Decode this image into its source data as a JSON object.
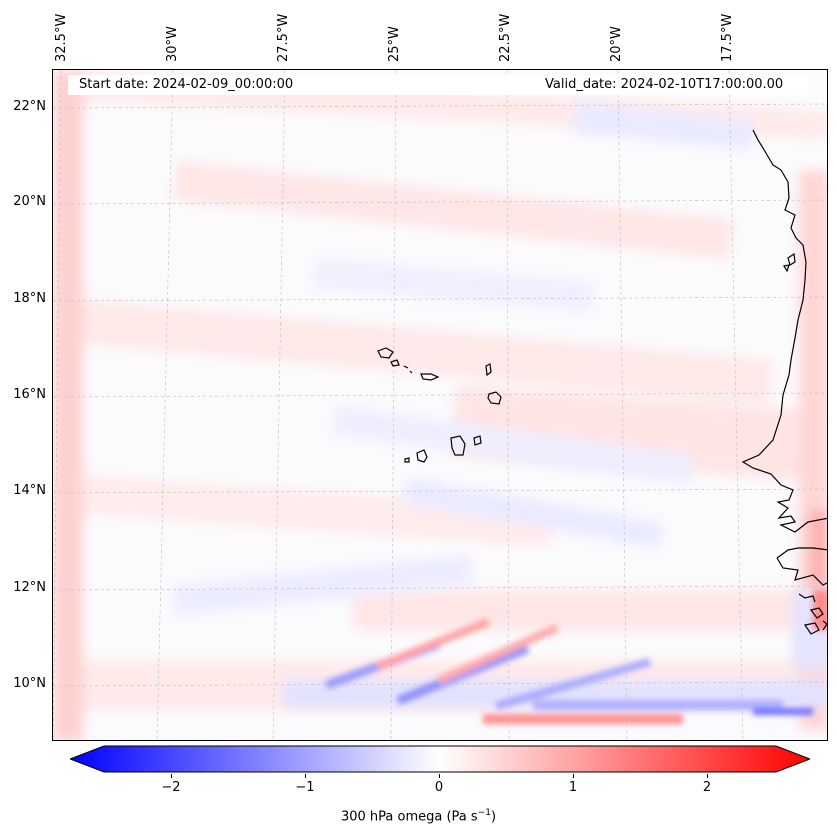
{
  "header": {
    "start_date": "Start date: 2024-02-09_00:00:00",
    "valid_date": "Valid_date: 2024-02-10T17:00:00.00"
  },
  "axes": {
    "lon_labels": [
      "32.5°W",
      "30°W",
      "27.5°W",
      "25°W",
      "22.5°W",
      "20°W",
      "17.5°W"
    ],
    "lat_labels": [
      "22°N",
      "20°N",
      "18°N",
      "16°N",
      "14°N",
      "12°N",
      "10°N"
    ]
  },
  "colorbar": {
    "label": "300 hPa omega (Pa s",
    "label_sup": "−1",
    "label_end": ")",
    "ticks": [
      "−2",
      "−1",
      "0",
      "1",
      "2"
    ],
    "min": -2.5,
    "max": 2.5,
    "cmap_neg": "#0000ff",
    "cmap_pos": "#ff0000"
  },
  "map": {
    "variable": "300 hPa omega",
    "units": "Pa s−1",
    "extent_lon": [
      -32.7,
      -15.5
    ],
    "extent_lat": [
      8.9,
      22.8
    ],
    "coastlines": "Cape Verde islands and West African coast (Mauritania, Senegal, Gambia, Guinea-Bissau)"
  }
}
